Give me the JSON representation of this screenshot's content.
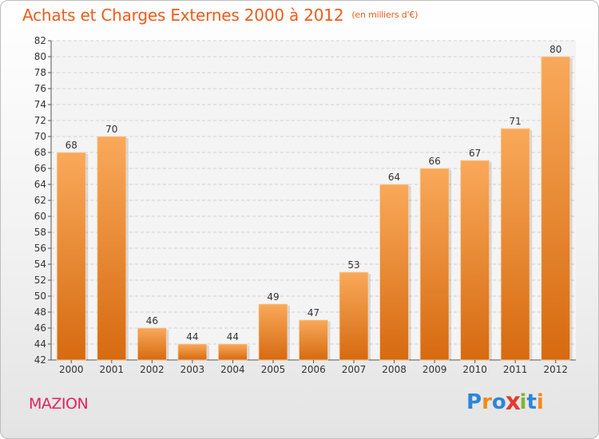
{
  "chart_data": {
    "type": "bar",
    "title": "Achats et Charges Externes 2000 à 2012",
    "subtitle": "(en milliers d'€)",
    "categories": [
      "2000",
      "2001",
      "2002",
      "2003",
      "2004",
      "2005",
      "2006",
      "2007",
      "2008",
      "2009",
      "2010",
      "2011",
      "2012"
    ],
    "values": [
      68,
      70,
      46,
      44,
      44,
      49,
      47,
      53,
      64,
      66,
      67,
      71,
      80
    ],
    "ylim": [
      42,
      82
    ],
    "yticks": [
      42,
      44,
      46,
      48,
      50,
      52,
      54,
      56,
      58,
      60,
      62,
      64,
      66,
      68,
      70,
      72,
      74,
      76,
      78,
      80,
      82
    ],
    "grid": true,
    "bar_color_top": "#f9a95a",
    "bar_color_bottom": "#d66a10"
  },
  "commune": "MAZION",
  "logo": {
    "text": "Proxiti",
    "letters": [
      {
        "ch": "P",
        "color": "#2e86d6"
      },
      {
        "ch": "r",
        "color": "#f28a1c"
      },
      {
        "ch": "o",
        "color": "#2e86d6"
      },
      {
        "ch": "x",
        "color": "#e23b2e"
      },
      {
        "ch": "i",
        "color": "#7cb82f"
      },
      {
        "ch": "t",
        "color": "#2e86d6"
      },
      {
        "ch": "i",
        "color": "#f28a1c"
      }
    ]
  }
}
